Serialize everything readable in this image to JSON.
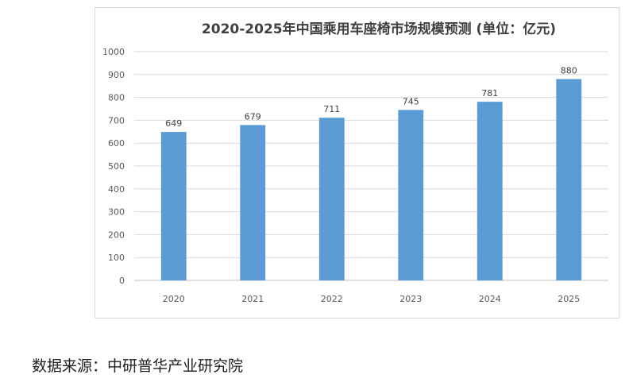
{
  "chart_data": {
    "type": "bar",
    "title": "2020-2025年中国乘用车座椅市场规模预测 (单位：亿元)",
    "xlabel": "",
    "ylabel": "",
    "categories": [
      "2020",
      "2021",
      "2022",
      "2023",
      "2024",
      "2025"
    ],
    "values": [
      649,
      679,
      711,
      745,
      781,
      880
    ],
    "ylim": [
      0,
      1000
    ],
    "yticks": [
      "0",
      "100",
      "200",
      "300",
      "400",
      "500",
      "600",
      "700",
      "800",
      "900",
      "1000"
    ],
    "grid": true,
    "legend": "none",
    "bar_color": "#5b9bd5"
  },
  "source": {
    "text": "数据来源：中研普华产业研究院"
  }
}
